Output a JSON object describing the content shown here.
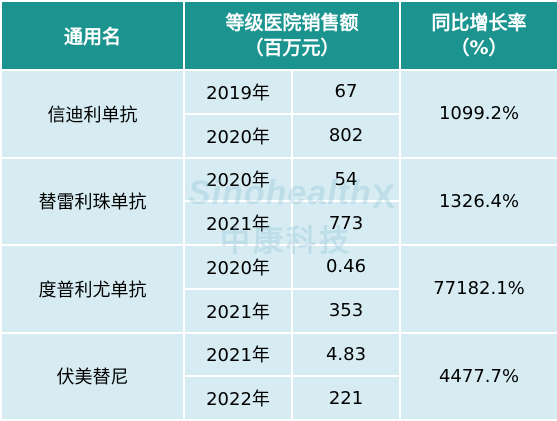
{
  "header": {
    "name": "通用名",
    "sales_line1": "等级医院销售额",
    "sales_line2": "（百万元）",
    "growth_line1": "同比增长率",
    "growth_line2": "（%）"
  },
  "rows": [
    {
      "name": "信迪利单抗",
      "growth": "1099.2%",
      "entries": [
        {
          "year": "2019年",
          "value": "67"
        },
        {
          "year": "2020年",
          "value": "802"
        }
      ]
    },
    {
      "name": "替雷利珠单抗",
      "growth": "1326.4%",
      "entries": [
        {
          "year": "2020年",
          "value": "54"
        },
        {
          "year": "2021年",
          "value": "773"
        }
      ]
    },
    {
      "name": "度普利尤单抗",
      "growth": "77182.1%",
      "entries": [
        {
          "year": "2020年",
          "value": "0.46"
        },
        {
          "year": "2021年",
          "value": "353"
        }
      ]
    },
    {
      "name": "伏美替尼",
      "growth": "4477.7%",
      "entries": [
        {
          "year": "2021年",
          "value": "4.83"
        },
        {
          "year": "2022年",
          "value": "221"
        }
      ]
    }
  ],
  "watermark": {
    "text_en": "Sinohealth",
    "text_zh": "中康科技",
    "mark": "X"
  },
  "colors": {
    "header_bg": "#1b9490",
    "cell_bg": "#d6ecf2",
    "grid": "#ffffff"
  }
}
